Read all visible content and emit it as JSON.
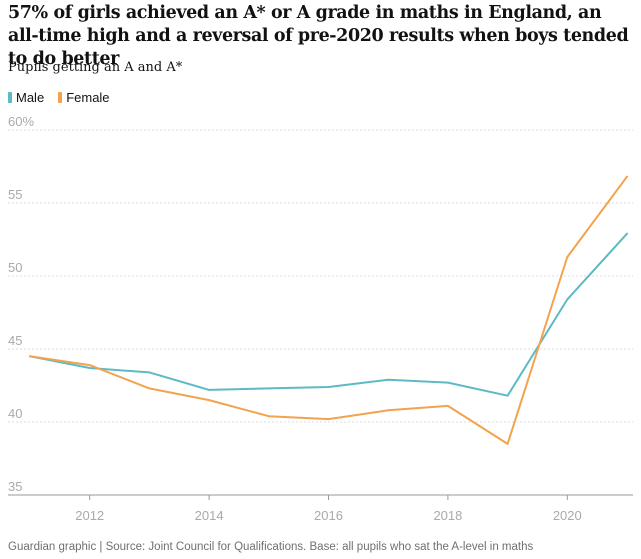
{
  "title": "57% of girls achieved an A* or A grade in maths in England, an all-time high and a reversal of pre-2020 results when boys tended to do better",
  "subtitle": "Pupils getting an A and A*",
  "source": "Guardian graphic | Source: Joint Council for Qualifications. Base: all pupils who sat the A-level in maths",
  "colors": {
    "male": "#5bbac4",
    "female": "#f3a24d",
    "grid": "#dcdcdc",
    "axis": "#999999",
    "tick_text": "#aaaaaa"
  },
  "chart_data": {
    "type": "line",
    "title": "57% of girls achieved an A* or A grade in maths in England, an all-time high and a reversal of pre-2020 results when boys tended to do better",
    "ylabel": "Pupils getting an A and A*",
    "xlabel": "",
    "x": [
      2011,
      2012,
      2013,
      2014,
      2015,
      2016,
      2017,
      2018,
      2019,
      2020,
      2021
    ],
    "xticks": [
      "2012",
      "2014",
      "2016",
      "2018",
      "2020"
    ],
    "yticks": [
      "60%",
      "55",
      "50",
      "45",
      "40",
      "35"
    ],
    "ylim": [
      35,
      60
    ],
    "xlim": [
      2011,
      2021
    ],
    "legend_position": "top-left",
    "grid": true,
    "series": [
      {
        "name": "Male",
        "color": "#5bbac4",
        "values": [
          44.5,
          43.7,
          43.4,
          42.2,
          42.3,
          42.4,
          42.9,
          42.7,
          41.8,
          48.4,
          52.9
        ]
      },
      {
        "name": "Female",
        "color": "#f3a24d",
        "values": [
          44.5,
          43.9,
          42.3,
          41.5,
          40.4,
          40.2,
          40.8,
          41.1,
          38.5,
          51.3,
          56.8
        ]
      }
    ]
  }
}
